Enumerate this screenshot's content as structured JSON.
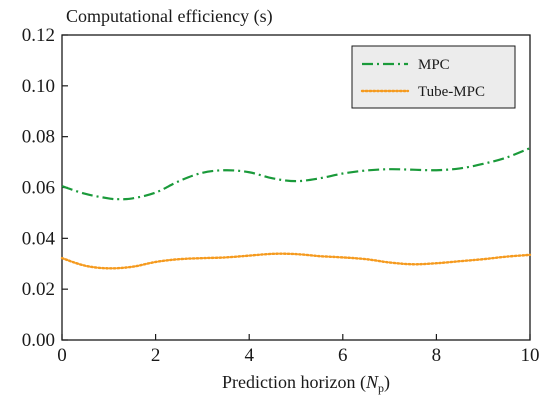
{
  "chart_data": {
    "type": "line",
    "ylabel": "Computational efficiency (s)",
    "xlabel_main": "Prediction horizon (",
    "xlabel_var": "N",
    "xlabel_sub": "p",
    "xlabel_close": ")",
    "xlim": [
      0,
      10
    ],
    "ylim": [
      0,
      0.12
    ],
    "x_ticks": [
      0,
      2,
      4,
      6,
      8,
      10
    ],
    "x_tick_labels": [
      "0",
      "2",
      "4",
      "6",
      "8",
      "10"
    ],
    "y_ticks": [
      0,
      0.02,
      0.04,
      0.06,
      0.08,
      0.1,
      0.12
    ],
    "y_tick_labels": [
      "0.00",
      "0.02",
      "0.04",
      "0.06",
      "0.08",
      "0.10",
      "0.12"
    ],
    "grid": false,
    "legend_position": "top-right",
    "series": [
      {
        "name": "MPC",
        "color": "#1a9a3a",
        "style": "dashdot",
        "x": [
          0,
          0.5,
          1.0,
          1.2,
          1.5,
          2.0,
          2.5,
          3.0,
          3.5,
          4.0,
          4.5,
          5.0,
          5.5,
          6.0,
          6.5,
          7.0,
          7.5,
          8.0,
          8.5,
          9.0,
          9.5,
          10.0
        ],
        "y": [
          0.0605,
          0.0575,
          0.0557,
          0.0554,
          0.0557,
          0.058,
          0.0625,
          0.0658,
          0.0668,
          0.066,
          0.0636,
          0.0625,
          0.0636,
          0.0655,
          0.0667,
          0.0672,
          0.067,
          0.0668,
          0.0675,
          0.0693,
          0.0718,
          0.0755
        ]
      },
      {
        "name": "Tube-MPC",
        "color": "#f59a1e",
        "style": "dotted",
        "x": [
          0,
          0.5,
          1.0,
          1.5,
          2.0,
          2.5,
          3.0,
          3.5,
          4.0,
          4.5,
          5.0,
          5.5,
          6.0,
          6.5,
          7.0,
          7.5,
          8.0,
          8.5,
          9.0,
          9.5,
          10.0
        ],
        "y": [
          0.0322,
          0.0292,
          0.0282,
          0.0288,
          0.0307,
          0.0318,
          0.0322,
          0.0325,
          0.0332,
          0.0339,
          0.0338,
          0.033,
          0.0325,
          0.0318,
          0.0305,
          0.0298,
          0.0302,
          0.031,
          0.0318,
          0.0328,
          0.0335
        ]
      }
    ]
  }
}
